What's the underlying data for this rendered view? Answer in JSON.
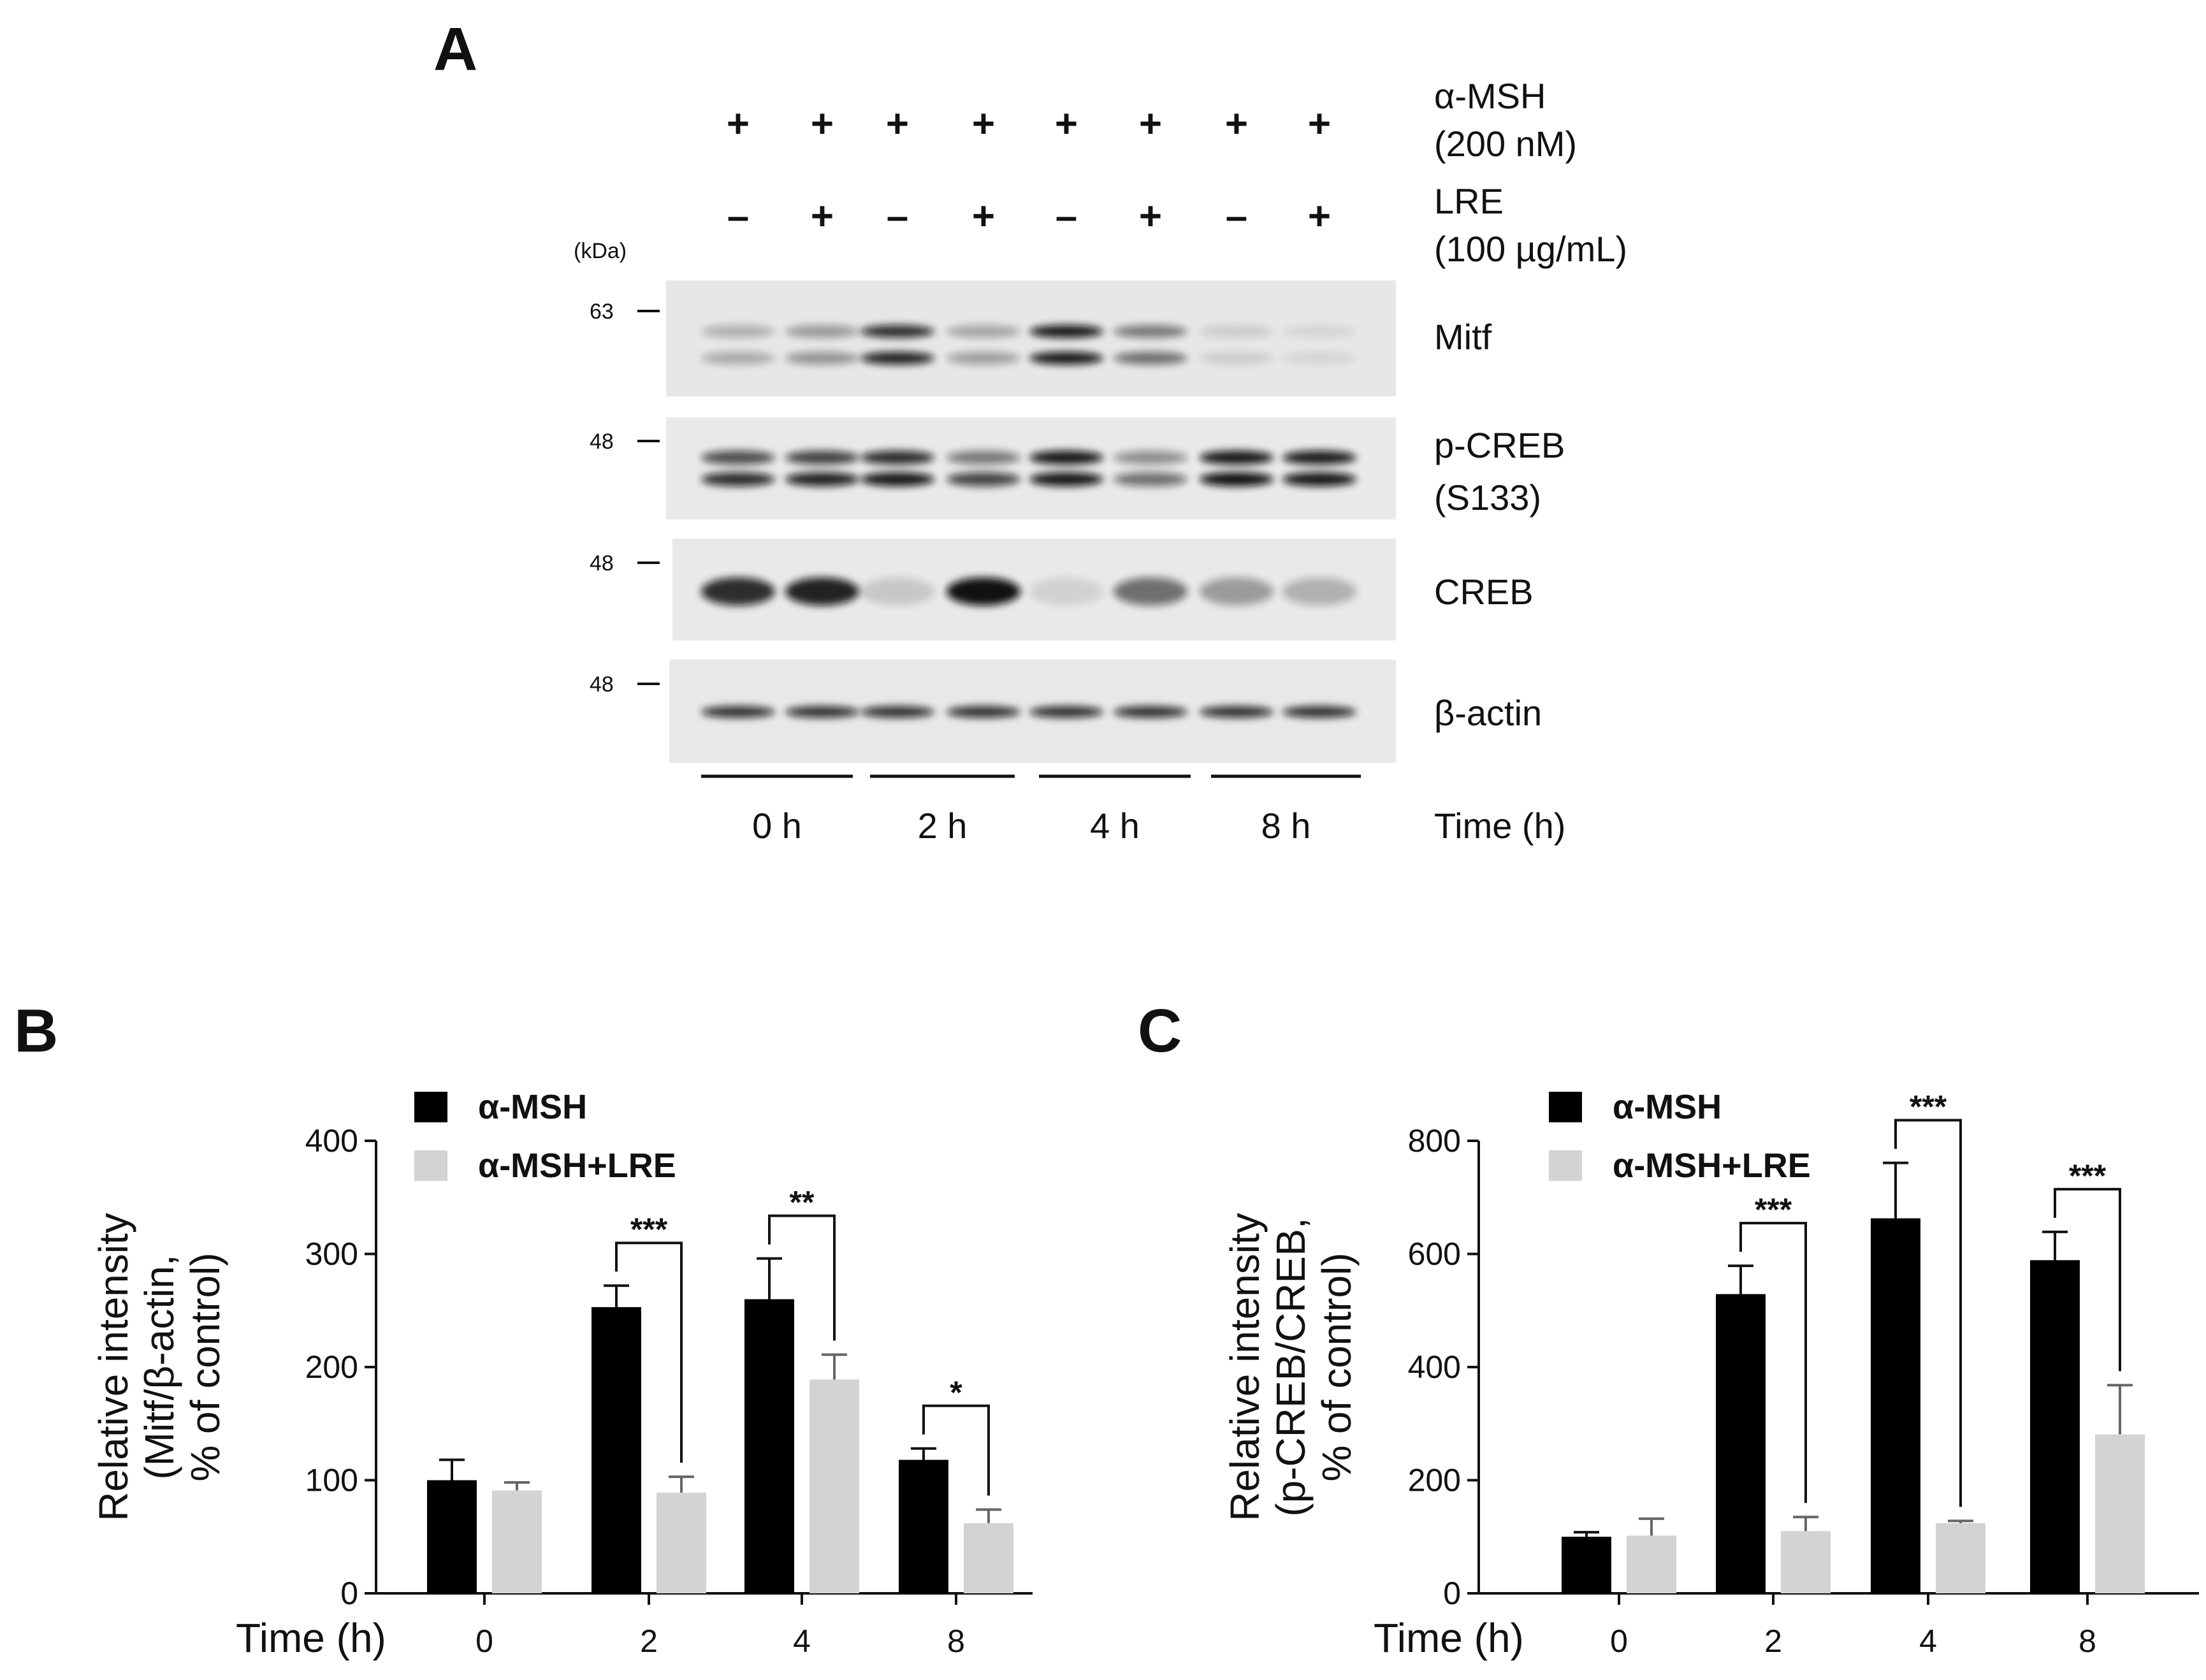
{
  "figure": {
    "panel_a": {
      "letter": "A",
      "treatments": [
        {
          "label_line1": "α-MSH",
          "label_line2": "(200 nM)",
          "signs": [
            "+",
            "+",
            "+",
            "+",
            "+",
            "+",
            "+",
            "+"
          ]
        },
        {
          "label_line1": "LRE",
          "label_line2": "(100 µg/mL)",
          "signs": [
            "–",
            "+",
            "–",
            "+",
            "–",
            "+",
            "–",
            "+"
          ]
        }
      ],
      "kda_label": "(kDa)",
      "blots": [
        {
          "name": "Mitf",
          "name_line2": "",
          "marker": "63"
        },
        {
          "name": "p-CREB",
          "name_line2": "(S133)",
          "marker": "48"
        },
        {
          "name": "CREB",
          "name_line2": "",
          "marker": "48"
        },
        {
          "name": "β-actin",
          "name_line2": "",
          "marker": "48"
        }
      ],
      "time_groups": [
        "0 h",
        "2 h",
        "4 h",
        "8 h"
      ],
      "time_axis_label": "Time (h)"
    },
    "panel_b": {
      "letter": "B"
    },
    "panel_c": {
      "letter": "C"
    }
  },
  "chart_data": [
    {
      "type": "bar",
      "panel": "B",
      "categories": [
        "0",
        "2",
        "4",
        "8"
      ],
      "xlabel": "Time  (h)",
      "ylabel_lines": [
        "Relative intensity",
        "(Mitf/β-actin,",
        "% of control)"
      ],
      "ylim": [
        0,
        400
      ],
      "yticks": [
        "0",
        "100",
        "200",
        "300",
        "400"
      ],
      "series": [
        {
          "name": "α-MSH",
          "color": "#000000",
          "values": [
            100,
            253,
            260,
            118
          ],
          "errors": [
            18,
            19,
            36,
            10
          ]
        },
        {
          "name": "α-MSH+LRE",
          "color": "#d3d3d3",
          "values": [
            91,
            89,
            189,
            62
          ],
          "errors": [
            7,
            14,
            22,
            12
          ]
        }
      ],
      "significance": [
        {
          "category": "2",
          "label": "***"
        },
        {
          "category": "4",
          "label": "**"
        },
        {
          "category": "8",
          "label": "*"
        }
      ],
      "legend_position": "top-left"
    },
    {
      "type": "bar",
      "panel": "C",
      "categories": [
        "0",
        "2",
        "4",
        "8"
      ],
      "xlabel": "Time  (h)",
      "ylabel_lines": [
        "Relative intensity",
        "(p-CREB/CREB,",
        "% of control)"
      ],
      "ylim": [
        0,
        800
      ],
      "yticks": [
        "0",
        "200",
        "400",
        "600",
        "800"
      ],
      "series": [
        {
          "name": "α-MSH",
          "color": "#000000",
          "values": [
            100,
            529,
            663,
            589
          ],
          "errors": [
            8,
            50,
            98,
            50
          ]
        },
        {
          "name": "α-MSH+LRE",
          "color": "#d3d3d3",
          "values": [
            102,
            110,
            124,
            281
          ],
          "errors": [
            30,
            25,
            4,
            87
          ]
        }
      ],
      "significance": [
        {
          "category": "2",
          "label": "***"
        },
        {
          "category": "4",
          "label": "***"
        },
        {
          "category": "8",
          "label": "***"
        }
      ],
      "legend_position": "top-left"
    }
  ]
}
